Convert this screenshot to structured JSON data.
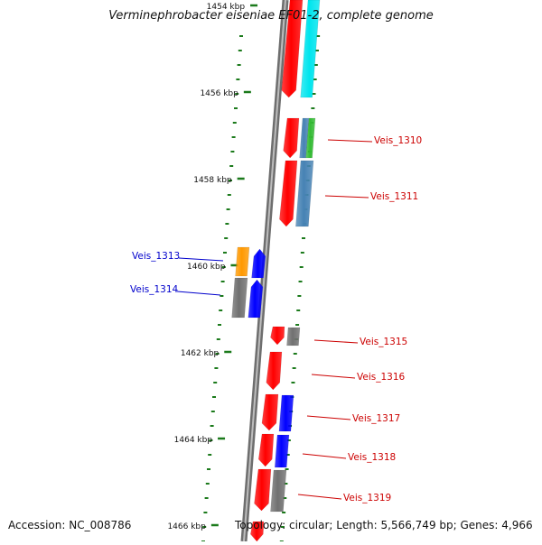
{
  "title": "Verminephrobacter eiseniae EF01-2, complete genome",
  "accession": "Accession: NC_008786",
  "summary": "Topology: circular; Length: 5,566,749 bp; Genes: 4,966",
  "colors": {
    "backbone": "#888888",
    "tick": "#1b7a1b",
    "red_label": "#cc0000",
    "blue_label": "#0000cc",
    "gene_red": "#ff0000",
    "gene_cyan": "#00e5ee",
    "gene_green": "#33bb33",
    "gene_steel": "#4682b4",
    "gene_orange": "#ff9900",
    "gene_gray": "#707070",
    "gene_blue": "#0000ff"
  },
  "scale_labels": [
    "1454 kbp",
    "1456 kbp",
    "1458 kbp",
    "1460 kbp",
    "1462 kbp",
    "1464 kbp",
    "1466 kbp"
  ],
  "gene_labels": [
    {
      "text": "Veis_1310",
      "color": "red"
    },
    {
      "text": "Veis_1311",
      "color": "red"
    },
    {
      "text": "Veis_1313",
      "color": "blue"
    },
    {
      "text": "Veis_1314",
      "color": "blue"
    },
    {
      "text": "Veis_1315",
      "color": "red"
    },
    {
      "text": "Veis_1316",
      "color": "red"
    },
    {
      "text": "Veis_1317",
      "color": "red"
    },
    {
      "text": "Veis_1318",
      "color": "red"
    },
    {
      "text": "Veis_1319",
      "color": "red"
    }
  ]
}
